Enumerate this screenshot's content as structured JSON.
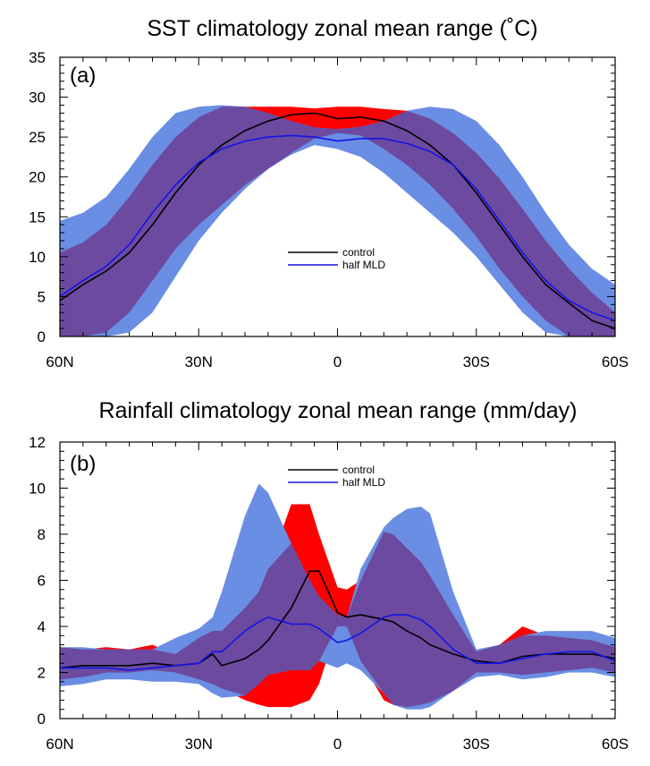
{
  "colors": {
    "control_band": "#ff0000",
    "halfmld_band": "#6a8ee3",
    "overlap_band": "#6c4aa0",
    "control_line": "#000000",
    "halfmld_line": "#1414e6"
  },
  "chart_data": [
    {
      "type": "area",
      "title": "SST climatology zonal mean range (˚C)",
      "panel_label": "(a)",
      "xlabel": "",
      "ylabel": "",
      "xlim": [
        -60,
        60
      ],
      "x_ticks": [
        -60,
        -30,
        0,
        30,
        60
      ],
      "x_tick_labels": [
        "60N",
        "30N",
        "0",
        "30S",
        "60S"
      ],
      "ylim": [
        0,
        35
      ],
      "y_ticks": [
        0,
        5,
        10,
        15,
        20,
        25,
        30,
        35
      ],
      "legend_position": "center",
      "x": [
        -60,
        -55,
        -50,
        -45,
        -40,
        -35,
        -30,
        -25,
        -20,
        -15,
        -10,
        -5,
        0,
        5,
        10,
        15,
        20,
        25,
        30,
        35,
        40,
        45,
        50,
        55,
        60
      ],
      "series": [
        {
          "name": "control",
          "line": [
            4.5,
            6.5,
            8.2,
            10.5,
            14.0,
            18.0,
            21.5,
            24.0,
            25.8,
            27.0,
            27.8,
            28.0,
            27.3,
            27.5,
            27.0,
            25.8,
            24.0,
            21.5,
            18.0,
            14.0,
            10.0,
            6.5,
            4.2,
            2.0,
            1.0
          ],
          "lower": [
            0.0,
            0.0,
            0.5,
            3.0,
            7.0,
            11.0,
            14.0,
            16.5,
            19.0,
            21.0,
            23.0,
            24.8,
            25.5,
            25.2,
            23.5,
            21.5,
            19.0,
            16.0,
            12.5,
            8.5,
            5.0,
            2.0,
            0.0,
            0.0,
            0.0
          ],
          "upper": [
            10.5,
            11.8,
            14.0,
            17.5,
            21.5,
            25.0,
            27.5,
            28.8,
            28.8,
            28.8,
            28.8,
            28.6,
            28.8,
            28.8,
            28.5,
            28.3,
            27.3,
            25.5,
            23.0,
            19.8,
            16.0,
            12.0,
            8.5,
            5.5,
            3.0
          ]
        },
        {
          "name": "half MLD",
          "line": [
            5.0,
            7.0,
            8.8,
            11.5,
            15.5,
            19.0,
            21.8,
            23.5,
            24.5,
            25.0,
            25.2,
            25.0,
            24.5,
            24.8,
            24.8,
            24.2,
            23.2,
            21.5,
            18.5,
            14.5,
            10.5,
            7.0,
            4.5,
            3.0,
            2.0
          ],
          "lower": [
            0.0,
            0.0,
            0.0,
            0.5,
            3.0,
            7.5,
            12.0,
            15.5,
            18.5,
            21.0,
            22.8,
            24.0,
            23.5,
            22.5,
            20.5,
            18.0,
            15.5,
            13.0,
            10.0,
            6.5,
            3.0,
            0.5,
            0.0,
            0.0,
            0.0
          ],
          "upper": [
            14.5,
            15.5,
            17.5,
            21.0,
            25.0,
            28.0,
            28.8,
            29.0,
            28.8,
            28.0,
            27.0,
            26.2,
            26.0,
            26.3,
            27.0,
            28.3,
            28.8,
            28.5,
            27.0,
            24.0,
            20.0,
            15.5,
            11.5,
            8.5,
            6.5
          ]
        }
      ]
    },
    {
      "type": "area",
      "title": "Rainfall climatology zonal mean range (mm/day)",
      "panel_label": "(b)",
      "xlabel": "",
      "ylabel": "",
      "xlim": [
        -60,
        60
      ],
      "x_ticks": [
        -60,
        -30,
        0,
        30,
        60
      ],
      "x_tick_labels": [
        "60N",
        "30N",
        "0",
        "30S",
        "60S"
      ],
      "ylim": [
        0,
        12
      ],
      "y_ticks": [
        0,
        2,
        4,
        6,
        8,
        10,
        12
      ],
      "legend_position": "top-center",
      "x": [
        -60,
        -55,
        -50,
        -45,
        -40,
        -35,
        -30,
        -27,
        -25,
        -20,
        -17,
        -15,
        -10,
        -6,
        -4,
        0,
        2,
        5,
        10,
        12,
        15,
        18,
        20,
        25,
        30,
        35,
        40,
        45,
        50,
        55,
        60
      ],
      "series": [
        {
          "name": "control",
          "line": [
            2.2,
            2.3,
            2.3,
            2.3,
            2.4,
            2.3,
            2.4,
            2.8,
            2.3,
            2.6,
            3.0,
            3.4,
            4.8,
            6.4,
            6.4,
            4.6,
            4.4,
            4.5,
            4.3,
            4.2,
            3.8,
            3.5,
            3.2,
            2.8,
            2.5,
            2.4,
            2.7,
            2.8,
            2.8,
            2.8,
            2.6
          ],
          "lower": [
            1.7,
            1.8,
            2.0,
            2.0,
            2.1,
            2.0,
            1.7,
            1.5,
            1.3,
            0.8,
            0.6,
            0.5,
            0.5,
            0.8,
            1.5,
            4.0,
            4.0,
            2.5,
            0.8,
            0.6,
            0.5,
            0.6,
            0.7,
            1.2,
            2.0,
            2.0,
            1.9,
            2.0,
            2.1,
            2.2,
            2.0
          ],
          "upper": [
            3.1,
            3.0,
            3.1,
            3.0,
            3.2,
            2.8,
            3.5,
            3.8,
            3.8,
            4.8,
            5.5,
            6.5,
            9.3,
            9.3,
            8.0,
            5.7,
            5.6,
            6.0,
            8.1,
            8.0,
            7.4,
            6.8,
            6.2,
            4.5,
            2.9,
            3.2,
            4.0,
            3.6,
            3.5,
            3.4,
            3.1
          ]
        },
        {
          "name": "half MLD",
          "line": [
            2.2,
            2.2,
            2.2,
            2.1,
            2.2,
            2.3,
            2.4,
            2.9,
            2.9,
            3.8,
            4.2,
            4.4,
            4.1,
            4.1,
            3.9,
            3.3,
            3.4,
            3.7,
            4.4,
            4.5,
            4.5,
            4.3,
            4.0,
            3.0,
            2.4,
            2.4,
            2.6,
            2.8,
            2.9,
            2.9,
            2.5
          ],
          "lower": [
            1.4,
            1.5,
            1.7,
            1.7,
            1.6,
            1.6,
            1.5,
            1.1,
            0.9,
            1.0,
            1.5,
            1.9,
            2.1,
            2.1,
            2.5,
            2.2,
            2.4,
            2.1,
            1.1,
            0.6,
            0.4,
            0.4,
            0.5,
            1.2,
            1.8,
            1.9,
            1.7,
            1.8,
            2.0,
            2.0,
            1.8
          ],
          "upper": [
            3.1,
            3.1,
            3.0,
            3.0,
            3.0,
            3.5,
            3.9,
            4.4,
            5.5,
            8.8,
            10.2,
            9.8,
            7.6,
            6.0,
            5.3,
            4.5,
            4.4,
            6.5,
            8.3,
            8.7,
            9.1,
            9.2,
            8.9,
            5.5,
            3.0,
            3.2,
            3.6,
            3.8,
            3.8,
            3.8,
            3.5
          ]
        }
      ]
    }
  ]
}
